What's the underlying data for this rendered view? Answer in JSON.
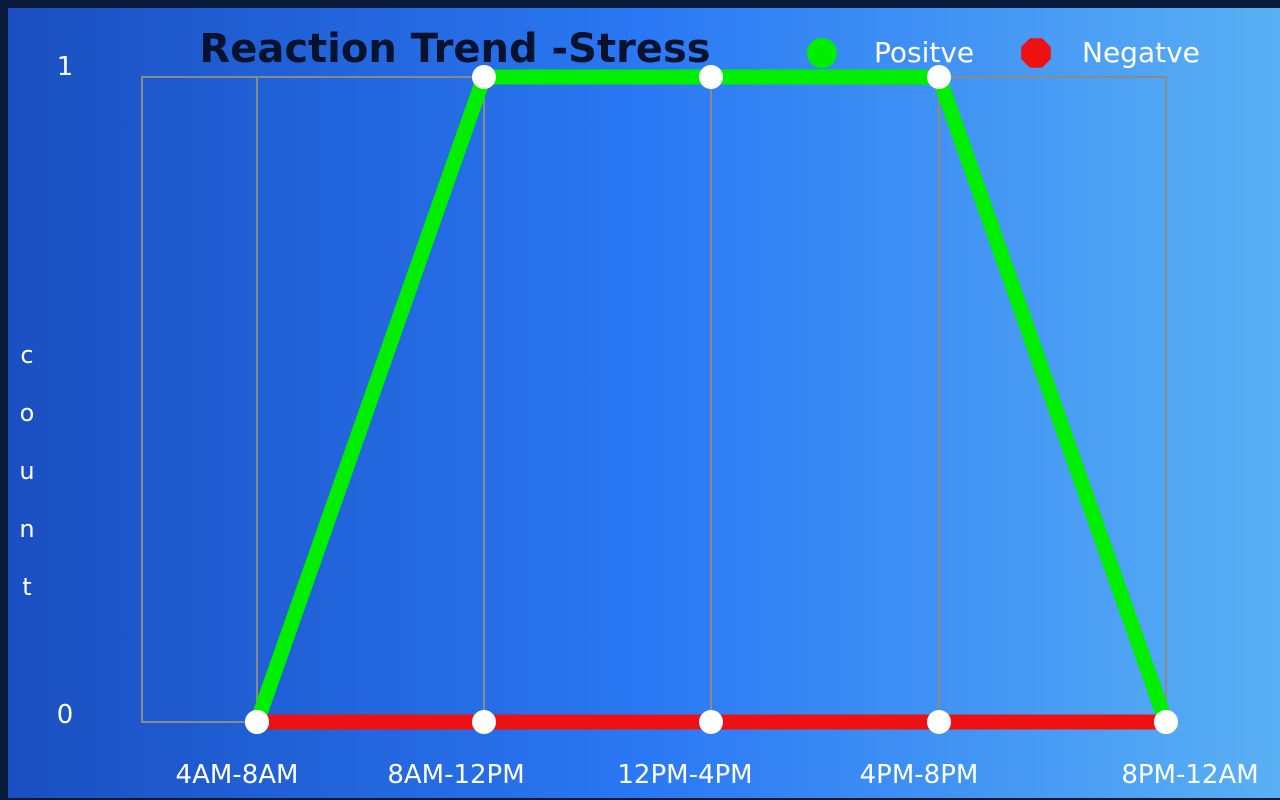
{
  "chart_data": {
    "type": "line",
    "title": "Reaction Trend -Stress",
    "xlabel": "",
    "ylabel": "count",
    "categories": [
      "4AM-8AM",
      "8AM-12PM",
      "12PM-4PM",
      "4PM-8PM",
      "8PM-12AM"
    ],
    "y_ticks": [
      "0",
      "1"
    ],
    "ylim": [
      0,
      1
    ],
    "grid": true,
    "legend_position": "top-right",
    "series": [
      {
        "name": "Positve",
        "color": "#00ee00",
        "marker_shape": "circle",
        "values": [
          0,
          1,
          1,
          1,
          0
        ]
      },
      {
        "name": "Negatve",
        "color": "#ee1111",
        "marker_shape": "octagon",
        "values": [
          0,
          0,
          0,
          0,
          0
        ]
      }
    ]
  }
}
